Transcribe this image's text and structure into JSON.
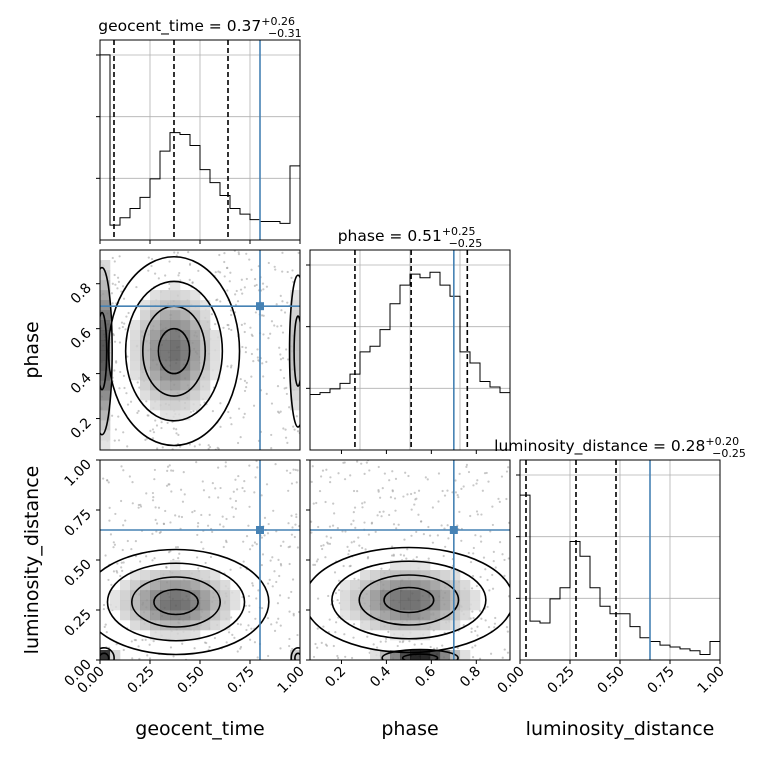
{
  "chart_data": {
    "type": "corner",
    "parameters": [
      "geocent_time",
      "phase",
      "luminosity_distance"
    ],
    "truth_color": "#4682b4",
    "titles": [
      {
        "name": "geocent_time",
        "median": "0.37",
        "plus": "+0.26",
        "minus": "−0.31"
      },
      {
        "name": "phase",
        "median": "0.51",
        "plus": "+0.25",
        "minus": "−0.25"
      },
      {
        "name": "luminosity_distance",
        "median": "0.28",
        "plus": "+0.20",
        "minus": "−0.25"
      }
    ],
    "axis_labels": {
      "x": [
        "geocent_time",
        "phase",
        "luminosity_distance"
      ],
      "y": [
        "phase",
        "luminosity_distance"
      ]
    },
    "ranges": [
      [
        0,
        1
      ],
      [
        0,
        1
      ],
      [
        0,
        1
      ]
    ],
    "ticks": {
      "geocent_time": [
        "0.00",
        "0.25",
        "0.50",
        "0.75",
        "1.00"
      ],
      "phase": [
        "0.2",
        "0.4",
        "0.6",
        "0.8"
      ],
      "luminosity_distance": [
        "0.00",
        "0.25",
        "0.50",
        "0.75",
        "1.00"
      ]
    },
    "truths": {
      "geocent_time": 0.8,
      "phase": 0.7,
      "luminosity_distance": 0.65
    },
    "quantiles": {
      "geocent_time": [
        0.07,
        0.37,
        0.64
      ],
      "phase": [
        0.26,
        0.51,
        0.76
      ],
      "luminosity_distance": [
        0.03,
        0.28,
        0.48
      ]
    },
    "histograms": {
      "geocent_time": [
        1.0,
        0.08,
        0.12,
        0.17,
        0.23,
        0.33,
        0.48,
        0.58,
        0.57,
        0.51,
        0.38,
        0.31,
        0.24,
        0.17,
        0.14,
        0.11,
        0.1,
        0.1,
        0.09,
        0.4
      ],
      "phase": [
        0.3,
        0.31,
        0.33,
        0.36,
        0.41,
        0.53,
        0.56,
        0.65,
        0.79,
        0.89,
        0.95,
        0.93,
        0.96,
        0.89,
        0.83,
        0.53,
        0.47,
        0.37,
        0.34,
        0.31
      ],
      "luminosity_distance": [
        0.89,
        0.21,
        0.2,
        0.33,
        0.39,
        0.64,
        0.56,
        0.39,
        0.29,
        0.25,
        0.25,
        0.18,
        0.12,
        0.1,
        0.08,
        0.07,
        0.06,
        0.05,
        0.03,
        0.1
      ]
    },
    "grid": true
  }
}
